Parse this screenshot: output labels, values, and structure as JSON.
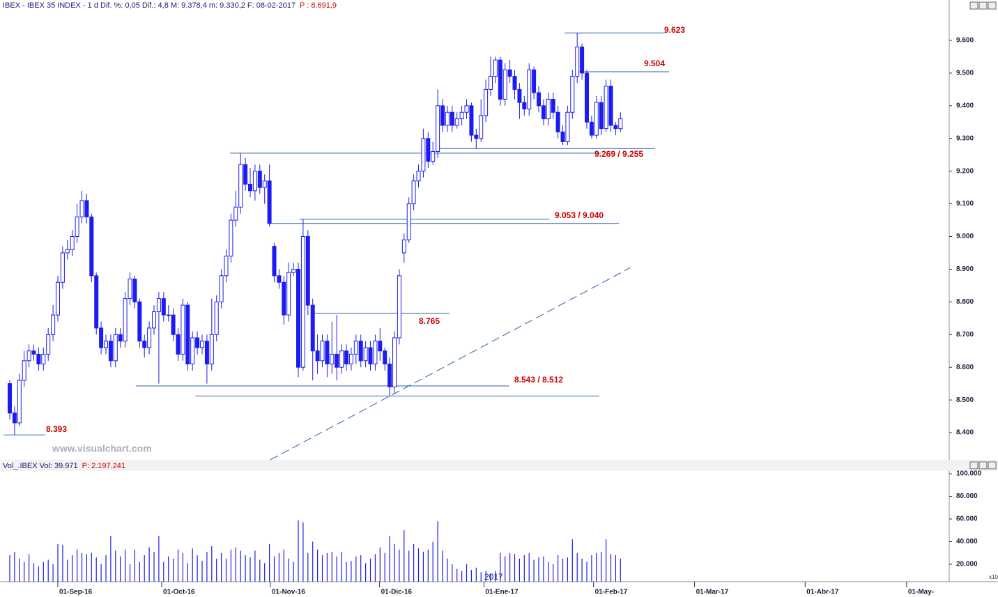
{
  "header": {
    "title": "IBEX - IBEX 35 INDEX - 1 d Dif. %: 0,05 Dif.: 4,8 M: 9.378,4 m: 9.330,2 F: 08-02-2017",
    "prev": "P : 8.691,9"
  },
  "watermark": "www.visualchart.com",
  "chart_data": [
    {
      "type": "candlestick",
      "up_color": "#ffffff",
      "down_color": "#1c1cf0",
      "line_color": "#2a5fa0",
      "xlim": [
        -2.03,
        195.07
      ],
      "ylim": [
        8317,
        9698
      ],
      "yticks": [
        {
          "value": 8400,
          "label": "8.400"
        },
        {
          "value": 8500,
          "label": "8.500"
        },
        {
          "value": 8600,
          "label": "8.600"
        },
        {
          "value": 8700,
          "label": "8.700"
        },
        {
          "value": 8800,
          "label": "8.800"
        },
        {
          "value": 8900,
          "label": "8.900"
        },
        {
          "value": 9000,
          "label": "9.000"
        },
        {
          "value": 9100,
          "label": "9.100"
        },
        {
          "value": 9200,
          "label": "9.200"
        },
        {
          "value": 9300,
          "label": "9.300"
        },
        {
          "value": 9400,
          "label": "9.400"
        },
        {
          "value": 9500,
          "label": "9.500"
        },
        {
          "value": 9600,
          "label": "9.600"
        }
      ],
      "xticks": [
        {
          "value": 10,
          "label": "01-Sep-16"
        },
        {
          "value": 31.6,
          "label": "01-Oct-16"
        },
        {
          "value": 54.2,
          "label": "01-Nov-16"
        },
        {
          "value": 76.9,
          "label": "01-Dic-16"
        },
        {
          "value": 98.6,
          "label": "01-Ene-17"
        },
        {
          "value": 121.4,
          "label": "01-Feb-17"
        },
        {
          "value": 142.4,
          "label": "01-Mar-17"
        },
        {
          "value": 165.4,
          "label": "01-Abr-17"
        },
        {
          "value": 186.5,
          "label": "01-May-"
        }
      ],
      "year_label": "2017",
      "open": [
        8550,
        8460,
        8430,
        8560,
        8620,
        8650,
        8640,
        8610,
        8640,
        8700,
        8760,
        8860,
        8950,
        8960,
        9000,
        9060,
        9110,
        9060,
        8880,
        8720,
        8660,
        8680,
        8620,
        8700,
        8680,
        8810,
        8870,
        8800,
        8680,
        8660,
        8720,
        8770,
        8810,
        8760,
        8760,
        8700,
        8640,
        8790,
        8610,
        8690,
        8660,
        8680,
        8610,
        8700,
        8800,
        8880,
        8940,
        9050,
        9090,
        9220,
        9160,
        9140,
        9200,
        9150,
        9170,
        8970,
        8880,
        8860,
        8760,
        8890,
        8900,
        8600,
        9000,
        8790,
        8650,
        8620,
        8680,
        8610,
        8640,
        8600,
        8650,
        8610,
        8640,
        8680,
        8620,
        8660,
        8610,
        8680,
        8650,
        8610,
        8540,
        8690,
        8950,
        8990,
        9100,
        9170,
        9200,
        9300,
        9230,
        9260,
        9400,
        9340,
        9380,
        9340,
        9360,
        9380,
        9400,
        9310,
        9300,
        9370,
        9450,
        9490,
        9540,
        9420,
        9510,
        9490,
        9450,
        9410,
        9390,
        9510,
        9440,
        9400,
        9360,
        9420,
        9380,
        9320,
        9290,
        9380,
        9490,
        9580,
        9500,
        9350,
        9310,
        9410,
        9330,
        9460,
        9340,
        9330
      ],
      "high": [
        8560,
        8480,
        8580,
        8650,
        8670,
        8670,
        8660,
        8660,
        8720,
        8790,
        8880,
        8970,
        8990,
        9020,
        9100,
        9140,
        9130,
        9070,
        8890,
        8740,
        8700,
        8700,
        8720,
        8720,
        8830,
        8890,
        8880,
        8810,
        8700,
        8740,
        8790,
        8830,
        8830,
        8790,
        8780,
        8720,
        8810,
        8800,
        8710,
        8710,
        8700,
        8700,
        8810,
        8820,
        8900,
        8960,
        9070,
        9140,
        9255,
        9240,
        9210,
        9220,
        9220,
        9190,
        9220,
        8980,
        8900,
        8880,
        8920,
        8920,
        8920,
        9053,
        9020,
        8810,
        8700,
        8700,
        8700,
        8740,
        8760,
        8670,
        8670,
        8660,
        8700,
        8700,
        8680,
        8680,
        8700,
        8720,
        8660,
        8630,
        8710,
        8900,
        9010,
        9120,
        9190,
        9220,
        9330,
        9320,
        9290,
        9450,
        9420,
        9400,
        9400,
        9380,
        9400,
        9420,
        9410,
        9330,
        9420,
        9480,
        9550,
        9550,
        9550,
        9530,
        9540,
        9510,
        9470,
        9430,
        9530,
        9520,
        9460,
        9420,
        9440,
        9440,
        9400,
        9340,
        9400,
        9510,
        9623,
        9590,
        9510,
        9370,
        9430,
        9430,
        9480,
        9480,
        9350,
        9380
      ],
      "low": [
        8440,
        8393,
        8420,
        8540,
        8600,
        8620,
        8590,
        8590,
        8620,
        8680,
        8740,
        8840,
        8930,
        8940,
        8980,
        9040,
        9040,
        8860,
        8700,
        8640,
        8640,
        8600,
        8600,
        8660,
        8660,
        8790,
        8780,
        8660,
        8630,
        8640,
        8700,
        8550,
        8740,
        8740,
        8680,
        8620,
        8620,
        8590,
        8590,
        8640,
        8640,
        8550,
        8590,
        8680,
        8780,
        8860,
        8920,
        9030,
        9070,
        9140,
        9120,
        9110,
        9130,
        9100,
        9030,
        8860,
        8840,
        8730,
        8740,
        8880,
        8570,
        8590,
        8760,
        8560,
        8580,
        8600,
        8570,
        8580,
        8560,
        8580,
        8590,
        8590,
        8610,
        8600,
        8600,
        8590,
        8590,
        8620,
        8590,
        8512,
        8520,
        8670,
        8920,
        8980,
        9080,
        9150,
        9180,
        9210,
        9220,
        9240,
        9320,
        9320,
        9320,
        9330,
        9340,
        9360,
        9290,
        9269,
        9290,
        9350,
        9430,
        9470,
        9400,
        9400,
        9470,
        9420,
        9360,
        9370,
        9370,
        9420,
        9380,
        9340,
        9340,
        9360,
        9300,
        9280,
        9280,
        9360,
        9470,
        9480,
        9330,
        9300,
        9300,
        9310,
        9320,
        9320,
        9310,
        9320
      ],
      "close": [
        8460,
        8430,
        8560,
        8620,
        8650,
        8640,
        8610,
        8640,
        8700,
        8760,
        8860,
        8950,
        8960,
        9000,
        9060,
        9110,
        9060,
        8880,
        8720,
        8660,
        8680,
        8620,
        8700,
        8680,
        8810,
        8870,
        8800,
        8680,
        8660,
        8720,
        8770,
        8810,
        8760,
        8760,
        8700,
        8640,
        8790,
        8610,
        8690,
        8660,
        8680,
        8610,
        8700,
        8800,
        8880,
        8940,
        9050,
        9090,
        9220,
        9160,
        9140,
        9200,
        9150,
        9170,
        9040,
        8880,
        8860,
        8760,
        8890,
        8900,
        8600,
        9000,
        8790,
        8650,
        8620,
        8680,
        8610,
        8640,
        8600,
        8650,
        8610,
        8640,
        8680,
        8620,
        8660,
        8610,
        8680,
        8650,
        8610,
        8540,
        8690,
        8880,
        8990,
        9100,
        9170,
        9200,
        9300,
        9230,
        9260,
        9400,
        9340,
        9380,
        9340,
        9360,
        9380,
        9400,
        9310,
        9300,
        9370,
        9450,
        9490,
        9540,
        9420,
        9510,
        9490,
        9450,
        9410,
        9390,
        9510,
        9440,
        9400,
        9360,
        9420,
        9380,
        9320,
        9290,
        9380,
        9490,
        9580,
        9500,
        9350,
        9310,
        9410,
        9330,
        9460,
        9340,
        9330,
        9360
      ],
      "levels": [
        {
          "label": "9.623",
          "lines": [
            {
              "value": 9623,
              "x": [
                115.4,
                136.4
              ]
            }
          ]
        },
        {
          "label": "9.504",
          "lines": [
            {
              "value": 9504,
              "x": [
                118.3,
                137.1
              ]
            }
          ]
        },
        {
          "label": "9.269 / 9.255",
          "lines": [
            {
              "value": 9269,
              "x": [
                88.6,
                134.2
              ]
            },
            {
              "value": 9255,
              "x": [
                45.8,
                122.9
              ]
            }
          ]
        },
        {
          "label": "9.053 / 9.040",
          "lines": [
            {
              "value": 9053,
              "x": [
                60.3,
                112.2
              ]
            },
            {
              "value": 9040,
              "x": [
                54.2,
                126.7
              ]
            }
          ]
        },
        {
          "label": "8.765",
          "lines": [
            {
              "value": 8765,
              "x": [
                63.5,
                91.4
              ]
            }
          ]
        },
        {
          "label": "8.543 / 8.512",
          "lines": [
            {
              "value": 8543,
              "x": [
                26.2,
                103.8
              ]
            },
            {
              "value": 8512,
              "x": [
                38.6,
                122.6
              ]
            }
          ]
        },
        {
          "label": "8.393",
          "lines": [
            {
              "value": 8393,
              "x": [
                -1.3,
                7.4
              ]
            }
          ]
        }
      ],
      "trendline": {
        "x": [
          54.2,
          129.1
        ],
        "values": [
          8317,
          8905
        ]
      }
    },
    {
      "type": "bar",
      "title": "Vol_.IBEX Vol: 39.971",
      "prev": "P: 2.197.241",
      "color": "#1c1cf0",
      "scale_label": "x10",
      "ylim": [
        4600,
        102500
      ],
      "yticks": [
        {
          "value": 20000,
          "label": "20.000"
        },
        {
          "value": 40000,
          "label": "40.000"
        },
        {
          "value": 60000,
          "label": "60.000"
        },
        {
          "value": 80000,
          "label": "80.000"
        },
        {
          "value": 100000,
          "label": "100.000"
        }
      ],
      "values": [
        28000,
        31000,
        25000,
        22000,
        29000,
        21000,
        18000,
        22000,
        24000,
        20000,
        38000,
        37000,
        24000,
        28000,
        33000,
        30000,
        29000,
        30000,
        26000,
        20000,
        28000,
        45000,
        32000,
        27000,
        33000,
        20000,
        33000,
        22000,
        28000,
        35000,
        31000,
        45000,
        22000,
        27000,
        25000,
        33000,
        30000,
        21000,
        34000,
        28000,
        23000,
        31000,
        36000,
        25000,
        30000,
        25000,
        33000,
        35000,
        32000,
        28000,
        26000,
        32000,
        24000,
        21000,
        38000,
        27000,
        30000,
        33000,
        25000,
        22000,
        59000,
        57000,
        30000,
        40000,
        33000,
        28000,
        30000,
        31000,
        27000,
        31000,
        22000,
        23000,
        27000,
        28000,
        21000,
        25000,
        29000,
        35000,
        30000,
        45000,
        38000,
        33000,
        50000,
        32000,
        38000,
        34000,
        31000,
        33000,
        40000,
        58000,
        32000,
        25000,
        20000,
        16000,
        14000,
        20000,
        15000,
        17000,
        13000,
        14000,
        12000,
        14000,
        30000,
        27000,
        30000,
        29000,
        25000,
        28000,
        30000,
        24000,
        26000,
        27000,
        22000,
        20000,
        28000,
        25000,
        26000,
        42000,
        30000,
        25000,
        22000,
        28000,
        30000,
        31000,
        42000,
        29000,
        28000,
        25000
      ]
    }
  ]
}
